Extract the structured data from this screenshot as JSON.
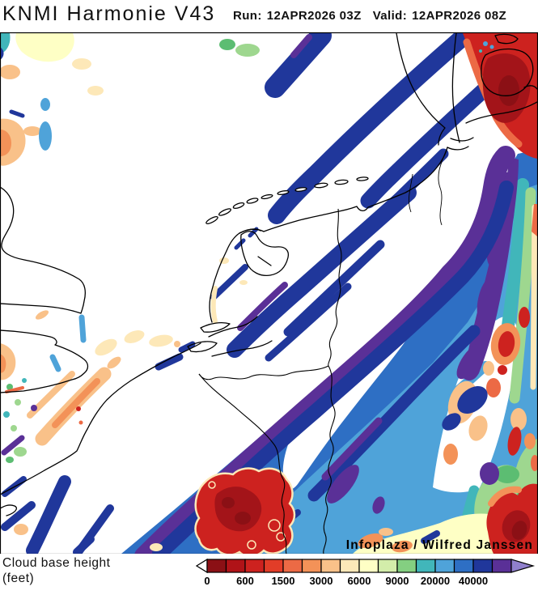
{
  "header": {
    "title": "KNMI Harmonie V43",
    "run_label": "Run:",
    "run_value": "12APR2026 03Z",
    "valid_label": "Valid:",
    "valid_value": "12APR2026 08Z"
  },
  "map": {
    "attribution": "Infoplaza / Wilfred Janssen"
  },
  "legend": {
    "title_line1": "Cloud base height",
    "title_line2": "(feet)",
    "tick_labels": [
      "0",
      "600",
      "1500",
      "3000",
      "6000",
      "9000",
      "20000",
      "40000"
    ],
    "ticks_every_n_cells": 2,
    "cells": [
      {
        "color": "#8b1015"
      },
      {
        "color": "#b01318"
      },
      {
        "color": "#cd221f"
      },
      {
        "color": "#e23d28"
      },
      {
        "color": "#ec6a45"
      },
      {
        "color": "#f39258"
      },
      {
        "color": "#f9c189"
      },
      {
        "color": "#fde8b8"
      },
      {
        "color": "#feffc5"
      },
      {
        "color": "#d3edaa"
      },
      {
        "color": "#84cf81"
      },
      {
        "color": "#41b6ba"
      },
      {
        "color": "#4fa3d9"
      },
      {
        "color": "#2e6fc4"
      },
      {
        "color": "#20379b"
      },
      {
        "color": "#5a3097"
      }
    ],
    "left_arrow_color": "#ffffff",
    "right_arrow_color": "#9080cc"
  },
  "palette": {
    "white": "#ffffff",
    "ink": "#000000",
    "maroon": "#8b1015",
    "darkred": "#a31419",
    "red": "#cd221f",
    "brightred": "#e23d28",
    "orangered": "#ec6a45",
    "orange": "#f39258",
    "peach": "#f9c189",
    "cream": "#fde8b8",
    "paleyellow": "#feffc5",
    "palegreen": "#d9efab",
    "lightgreen": "#9ed78f",
    "green": "#5cbd72",
    "teal": "#41b6ba",
    "skyblue": "#4fa3d9",
    "mediumblue": "#2e6fc4",
    "navy": "#20379b",
    "purple": "#5a3097",
    "lavender": "#9080cc"
  }
}
